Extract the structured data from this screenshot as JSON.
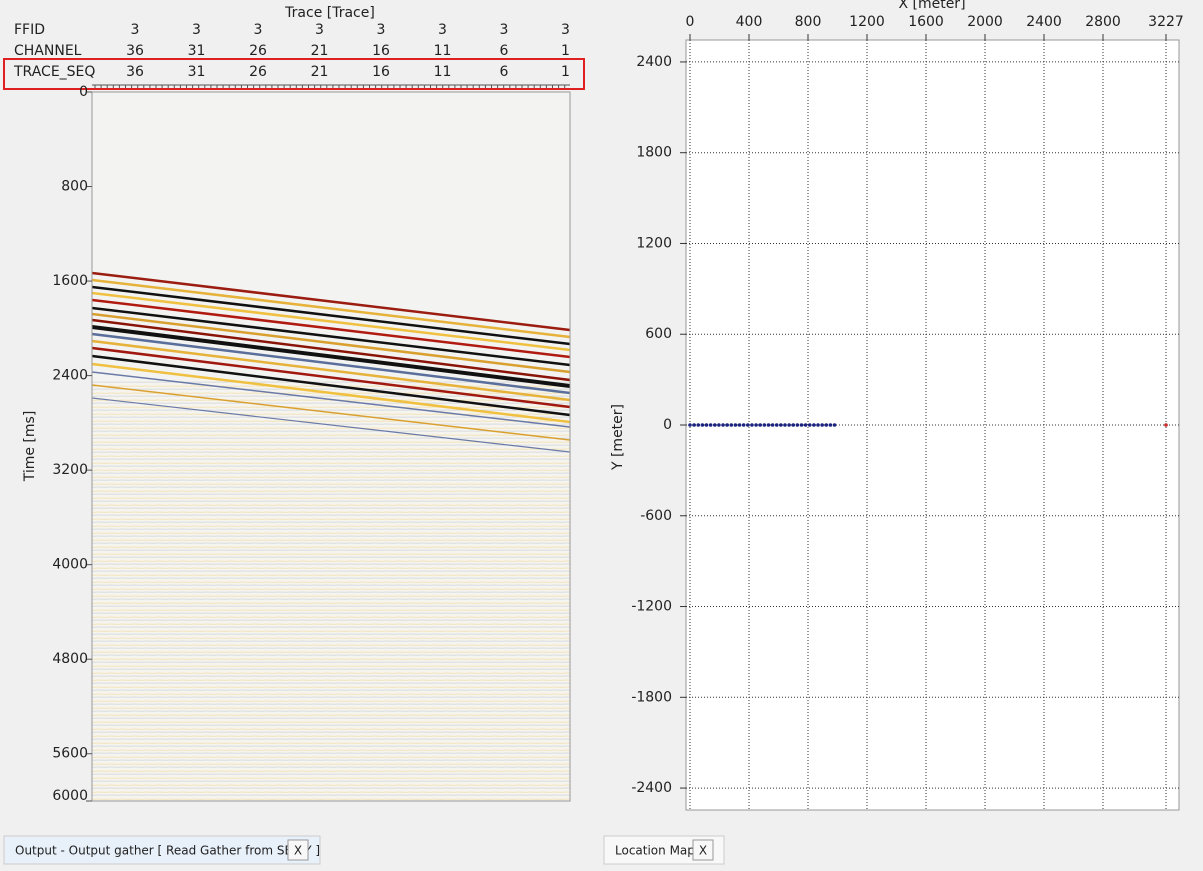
{
  "seismic_view": {
    "axis_title_top": "Trace [Trace]",
    "header_rows": [
      {
        "name": "FFID",
        "values": [
          3,
          3,
          3,
          3,
          3,
          3,
          3,
          3
        ]
      },
      {
        "name": "CHANNEL",
        "values": [
          36,
          31,
          26,
          21,
          16,
          11,
          6,
          1
        ]
      },
      {
        "name": "TRACE_SEQ",
        "values": [
          36,
          31,
          26,
          21,
          16,
          11,
          6,
          1
        ]
      }
    ],
    "y_label": "Time [ms]",
    "ylim": [
      0,
      6000
    ],
    "yticks": [
      0,
      800,
      1600,
      2400,
      3200,
      4000,
      4800,
      5600,
      6000
    ]
  },
  "location_map": {
    "x_label": "X [meter]",
    "y_label": "Y [meter]",
    "xlim": [
      0,
      3227
    ],
    "xticks": [
      0,
      400,
      800,
      1200,
      1600,
      2000,
      2400,
      2800,
      3227
    ],
    "ylim": [
      -2545,
      2545
    ],
    "yticks": [
      2400,
      1800,
      1200,
      600,
      0,
      -600,
      -1200,
      -1800,
      -2400
    ],
    "receivers": {
      "color": "#1a237e",
      "x": [
        0,
        28,
        56,
        84,
        112,
        140,
        168,
        196,
        224,
        252,
        280,
        308,
        336,
        364,
        392,
        420,
        448,
        476,
        504,
        532,
        560,
        588,
        616,
        644,
        672,
        700,
        728,
        756,
        784,
        812,
        840,
        868,
        896,
        924,
        952,
        980
      ],
      "y": [
        0,
        0,
        0,
        0,
        0,
        0,
        0,
        0,
        0,
        0,
        0,
        0,
        0,
        0,
        0,
        0,
        0,
        0,
        0,
        0,
        0,
        0,
        0,
        0,
        0,
        0,
        0,
        0,
        0,
        0,
        0,
        0,
        0,
        0,
        0,
        0
      ]
    },
    "source": {
      "color": "#c62828",
      "x": [
        3227
      ],
      "y": [
        0
      ]
    }
  },
  "tabs": [
    {
      "label": "Output - Output gather [ Read Gather from SEG-Y ]",
      "close": "X"
    },
    {
      "label": "Location Map",
      "close": "X"
    }
  ]
}
